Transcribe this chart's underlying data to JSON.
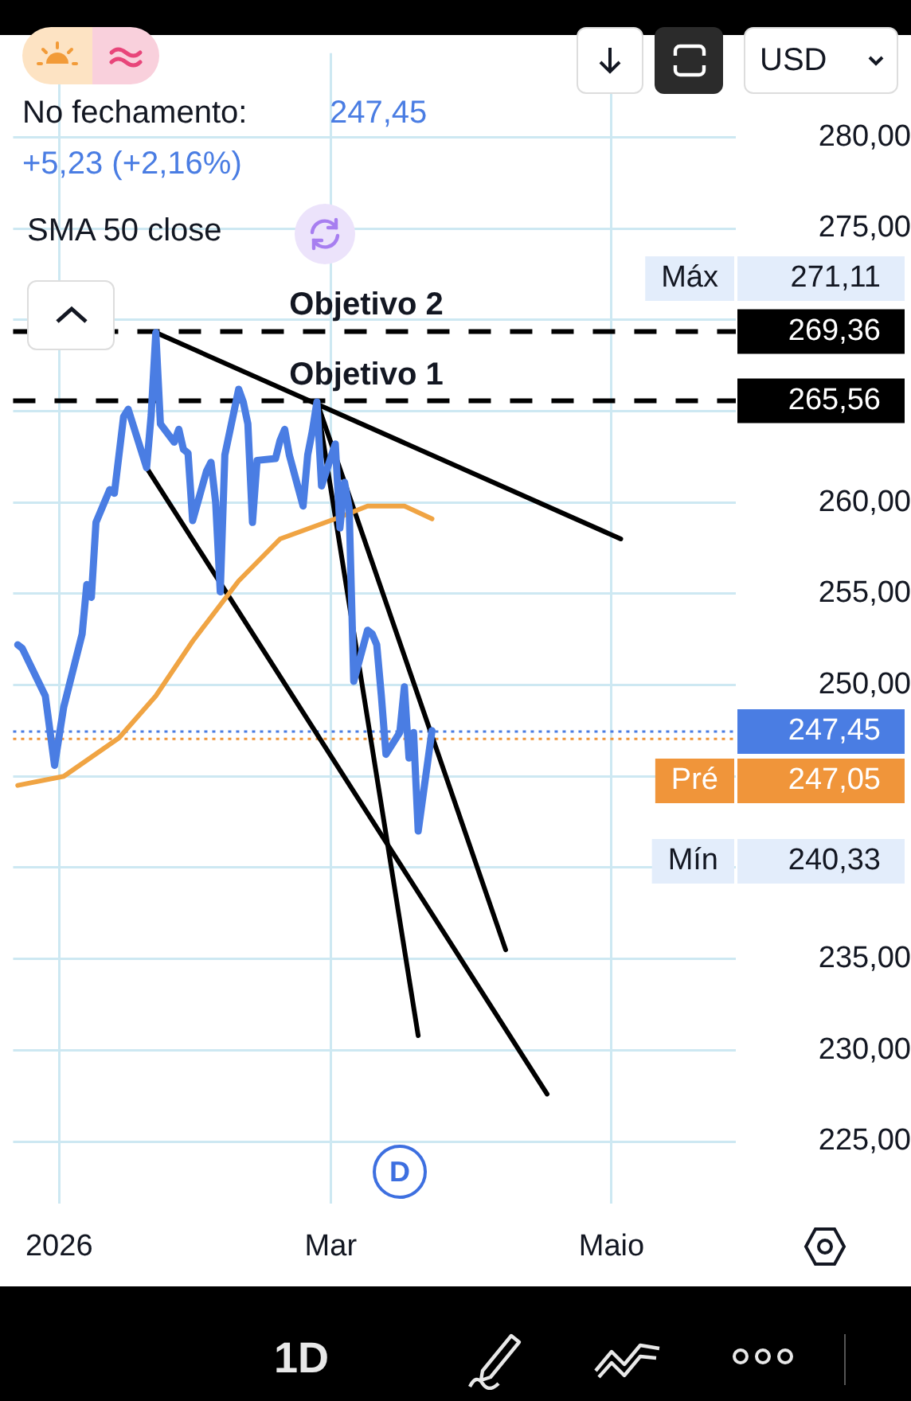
{
  "chart_data": {
    "type": "line",
    "x": [
      "2025-12-23",
      "2025-12-24",
      "2025-12-29",
      "2025-12-31",
      "2026-01-02",
      "2026-01-06",
      "2026-01-07",
      "2026-01-08",
      "2026-01-09",
      "2026-01-12",
      "2026-01-13",
      "2026-01-14",
      "2026-01-15",
      "2026-01-16",
      "2026-01-20",
      "2026-01-21",
      "2026-01-22",
      "2026-01-23",
      "2026-01-26",
      "2026-01-27",
      "2026-01-28",
      "2026-01-29",
      "2026-01-30",
      "2026-02-02",
      "2026-02-03",
      "2026-02-04",
      "2026-02-05",
      "2026-02-06",
      "2026-02-09",
      "2026-02-10",
      "2026-02-11",
      "2026-02-12",
      "2026-02-13",
      "2026-02-17",
      "2026-02-18",
      "2026-02-19",
      "2026-02-20",
      "2026-02-23",
      "2026-02-24",
      "2026-02-25",
      "2026-02-26",
      "2026-02-27",
      "2026-03-02",
      "2026-03-03",
      "2026-03-04",
      "2026-03-05",
      "2026-03-06",
      "2026-03-09",
      "2026-03-10",
      "2026-03-11",
      "2026-03-12",
      "2026-03-13",
      "2026-03-16",
      "2026-03-17",
      "2026-03-18",
      "2026-03-19",
      "2026-03-20",
      "2026-03-23"
    ],
    "series": [
      {
        "color": "#4a7de3",
        "values": [
          252.2,
          252.0,
          249.4,
          245.6,
          248.8,
          252.8,
          255.5,
          254.8,
          258.9,
          260.7,
          260.5,
          262.6,
          264.7,
          265.1,
          261.9,
          264.8,
          269.3,
          264.3,
          263.3,
          264.0,
          262.9,
          262.7,
          259.0,
          261.7,
          262.2,
          260.0,
          255.1,
          262.6,
          266.2,
          265.5,
          264.3,
          258.9,
          262.3,
          262.4,
          263.4,
          264.0,
          262.6,
          259.8,
          262.6,
          263.9,
          265.5,
          260.9,
          263.2,
          258.6,
          261.1,
          259.7,
          250.2,
          253.0,
          252.8,
          252.2,
          249.4,
          246.2,
          247.4,
          249.9,
          246.0,
          247.4,
          242.0,
          247.5
        ]
      },
      {
        "color": "#f0a443",
        "x": [
          "2025-12-23",
          "2026-01-02",
          "2026-01-14",
          "2026-01-22",
          "2026-01-30",
          "2026-02-09",
          "2026-02-18",
          "2026-03-02",
          "2026-03-09",
          "2026-03-17",
          "2026-03-23"
        ],
        "values": [
          244.5,
          245.0,
          247.1,
          249.4,
          252.4,
          255.7,
          258.0,
          259.1,
          259.8,
          259.8,
          259.1
        ]
      },
      {
        "type": "line",
        "color": "#000000",
        "x": [
          "2026-01-22",
          "2026-05-03"
        ],
        "values": [
          269.3,
          258.0
        ]
      },
      {
        "type": "line",
        "color": "#000000",
        "x": [
          "2026-01-20",
          "2026-04-17"
        ],
        "values": [
          261.9,
          227.6
        ]
      },
      {
        "type": "line",
        "color": "#000000",
        "x": [
          "2026-02-26",
          "2026-04-08"
        ],
        "values": [
          265.5,
          235.5
        ]
      },
      {
        "type": "line",
        "color": "#000000",
        "x": [
          "2026-02-26",
          "2026-03-20"
        ],
        "values": [
          265.5,
          230.8
        ]
      }
    ],
    "xlim": [
      "2025-12-22",
      "2026-05-28"
    ],
    "xticks": [
      {
        "value": "2026-01-01",
        "label": "2026"
      },
      {
        "value": "2026-03-01",
        "label": "Mar"
      },
      {
        "value": "2026-05-01",
        "label": "Maio"
      }
    ],
    "ylim": [
      221.6,
      284.6
    ],
    "yticks": [
      {
        "value": 225,
        "label": "225,00"
      },
      {
        "value": 230,
        "label": "230,00"
      },
      {
        "value": 235,
        "label": "235,00"
      },
      {
        "value": 240,
        "label": null
      },
      {
        "value": 245,
        "label": null
      },
      {
        "value": 250,
        "label": "250,00"
      },
      {
        "value": 255,
        "label": "255,00"
      },
      {
        "value": 260,
        "label": "260,00"
      },
      {
        "value": 265,
        "label": null
      },
      {
        "value": 270,
        "label": null
      },
      {
        "value": 275,
        "label": "275,00"
      },
      {
        "value": 280,
        "label": "280,00"
      }
    ],
    "ref_lines": [
      {
        "axis": "y",
        "value": 269.36,
        "label": "Objetivo 2",
        "color": "#000000",
        "line_style": "dashed"
      },
      {
        "axis": "y",
        "value": 265.56,
        "label": "Objetivo 1",
        "color": "#000000",
        "line_style": "dashed"
      },
      {
        "axis": "y",
        "value": 247.45,
        "label": null,
        "color": "#4a7de3",
        "line_style": "dotted"
      },
      {
        "axis": "y",
        "value": 247.05,
        "label": "Pré",
        "color": "#f0953a",
        "line_style": "dotted"
      }
    ],
    "annotations": [
      "No fechamento:",
      "247,45",
      "+5,23 (+2,16%)",
      "USD",
      "1D",
      "SMA 50 close",
      "Máx",
      "271,11",
      "Mín",
      "240,33",
      "269,36",
      "265,56",
      "247,45",
      "247,05",
      {
        "text": "D",
        "x": "2026-03-16"
      }
    ],
    "grid": true,
    "legend": false,
    "marker": "none"
  }
}
